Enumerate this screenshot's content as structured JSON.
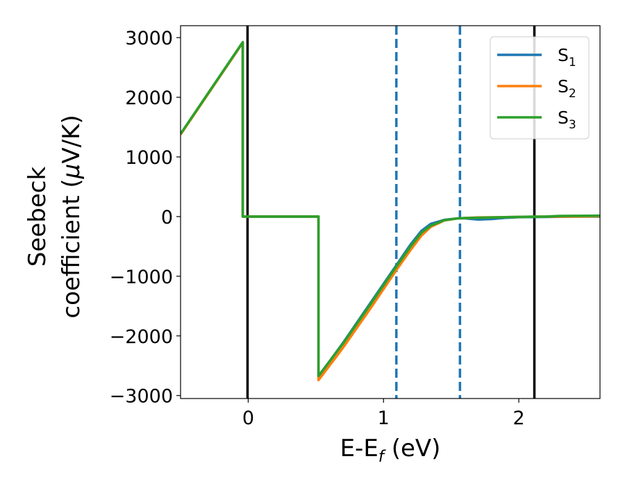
{
  "chart_data": {
    "type": "line",
    "title": "",
    "xlabel": {
      "main": "E-E",
      "sub": "f",
      "unit": " (eV)"
    },
    "ylabel": {
      "line1": "Seebeck",
      "line2": "coefficient  (",
      "mu": "μ",
      "unit": "V/K)"
    },
    "xlim": [
      -0.5,
      2.6
    ],
    "ylim": [
      -3050,
      3200
    ],
    "xticks": [
      0,
      1,
      2
    ],
    "xtick_labels": [
      "0",
      "1",
      "2"
    ],
    "yticks": [
      -3000,
      -2000,
      -1000,
      0,
      1000,
      2000,
      3000
    ],
    "ytick_labels": [
      "−3000",
      "−2000",
      "−1000",
      "0",
      "1000",
      "2000",
      "3000"
    ],
    "grid": false,
    "legend_position": "top-right",
    "vlines": [
      {
        "x": -0.005,
        "style": "solid",
        "color": "#000000"
      },
      {
        "x": 2.115,
        "style": "solid",
        "color": "#000000"
      },
      {
        "x": 1.095,
        "style": "dashed",
        "color": "#1f77b4"
      },
      {
        "x": 1.565,
        "style": "dashed",
        "color": "#1f77b4"
      }
    ],
    "series": [
      {
        "name": "S",
        "sub": "1",
        "color": "#1f77b4",
        "points": [
          [
            -0.5,
            1380
          ],
          [
            -0.04,
            2920
          ],
          [
            -0.04,
            0
          ],
          [
            0.52,
            0
          ],
          [
            0.52,
            -2680
          ],
          [
            0.7,
            -2120
          ],
          [
            0.9,
            -1460
          ],
          [
            1.1,
            -800
          ],
          [
            1.2,
            -470
          ],
          [
            1.28,
            -240
          ],
          [
            1.35,
            -120
          ],
          [
            1.45,
            -55
          ],
          [
            1.55,
            -30
          ],
          [
            1.6,
            -30
          ],
          [
            1.7,
            -50
          ],
          [
            1.8,
            -40
          ],
          [
            1.9,
            -20
          ],
          [
            2.0,
            -10
          ],
          [
            2.2,
            -5
          ],
          [
            2.4,
            0
          ],
          [
            2.6,
            0
          ]
        ]
      },
      {
        "name": "S",
        "sub": "2",
        "color": "#ff7f0e",
        "points": [
          [
            -0.5,
            1375
          ],
          [
            -0.04,
            2915
          ],
          [
            -0.04,
            0
          ],
          [
            0.52,
            0
          ],
          [
            0.52,
            -2740
          ],
          [
            0.7,
            -2200
          ],
          [
            0.9,
            -1550
          ],
          [
            1.1,
            -880
          ],
          [
            1.2,
            -560
          ],
          [
            1.28,
            -320
          ],
          [
            1.35,
            -170
          ],
          [
            1.45,
            -65
          ],
          [
            1.55,
            -30
          ],
          [
            1.6,
            -25
          ],
          [
            1.7,
            -15
          ],
          [
            1.9,
            -10
          ],
          [
            2.0,
            -5
          ],
          [
            2.2,
            0
          ],
          [
            2.4,
            0
          ],
          [
            2.6,
            5
          ]
        ]
      },
      {
        "name": "S",
        "sub": "3",
        "color": "#2ca02c",
        "points": [
          [
            -0.5,
            1385
          ],
          [
            -0.04,
            2925
          ],
          [
            -0.04,
            0
          ],
          [
            0.52,
            0
          ],
          [
            0.52,
            -2670
          ],
          [
            0.7,
            -2130
          ],
          [
            0.9,
            -1480
          ],
          [
            1.1,
            -820
          ],
          [
            1.2,
            -500
          ],
          [
            1.28,
            -270
          ],
          [
            1.35,
            -150
          ],
          [
            1.45,
            -60
          ],
          [
            1.55,
            -30
          ],
          [
            1.6,
            -25
          ],
          [
            1.7,
            -20
          ],
          [
            1.9,
            -10
          ],
          [
            2.0,
            -5
          ],
          [
            2.2,
            0
          ],
          [
            2.3,
            10
          ],
          [
            2.6,
            15
          ]
        ]
      }
    ]
  }
}
